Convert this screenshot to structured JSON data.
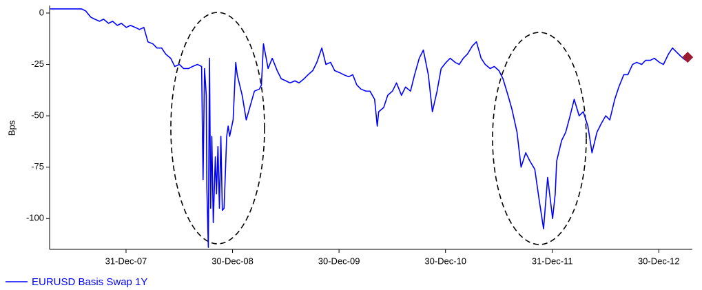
{
  "chart_data": {
    "type": "line",
    "y_label": "Bps",
    "x": [
      "2007-04-15",
      "2007-05-01",
      "2007-05-15",
      "2007-06-01",
      "2007-06-15",
      "2007-07-01",
      "2007-07-15",
      "2007-08-01",
      "2007-08-15",
      "2007-09-01",
      "2007-09-15",
      "2007-10-01",
      "2007-10-15",
      "2007-11-01",
      "2007-11-15",
      "2007-12-01",
      "2007-12-15",
      "2008-01-01",
      "2008-01-15",
      "2008-02-01",
      "2008-02-15",
      "2008-03-01",
      "2008-03-15",
      "2008-04-01",
      "2008-04-15",
      "2008-05-01",
      "2008-05-15",
      "2008-06-01",
      "2008-06-15",
      "2008-07-01",
      "2008-07-15",
      "2008-08-01",
      "2008-08-15",
      "2008-09-01",
      "2008-09-15",
      "2008-09-20",
      "2008-09-25",
      "2008-10-01",
      "2008-10-03",
      "2008-10-08",
      "2008-10-12",
      "2008-10-16",
      "2008-10-20",
      "2008-10-25",
      "2008-11-01",
      "2008-11-05",
      "2008-11-10",
      "2008-11-15",
      "2008-11-20",
      "2008-11-25",
      "2008-12-01",
      "2008-12-10",
      "2008-12-15",
      "2008-12-20",
      "2009-01-01",
      "2009-01-10",
      "2009-01-15",
      "2009-02-01",
      "2009-02-15",
      "2009-03-01",
      "2009-03-15",
      "2009-04-01",
      "2009-04-08",
      "2009-04-15",
      "2009-05-01",
      "2009-05-15",
      "2009-06-01",
      "2009-06-15",
      "2009-07-01",
      "2009-07-15",
      "2009-08-01",
      "2009-08-15",
      "2009-09-01",
      "2009-09-15",
      "2009-10-01",
      "2009-10-15",
      "2009-11-01",
      "2009-11-15",
      "2009-12-01",
      "2009-12-15",
      "2010-01-01",
      "2010-01-15",
      "2010-02-01",
      "2010-02-15",
      "2010-03-01",
      "2010-03-15",
      "2010-04-01",
      "2010-04-15",
      "2010-05-01",
      "2010-05-10",
      "2010-05-15",
      "2010-06-01",
      "2010-06-15",
      "2010-07-01",
      "2010-07-15",
      "2010-08-01",
      "2010-08-15",
      "2010-09-01",
      "2010-09-15",
      "2010-10-01",
      "2010-10-15",
      "2010-11-01",
      "2010-11-15",
      "2010-12-01",
      "2010-12-15",
      "2011-01-01",
      "2011-01-15",
      "2011-02-01",
      "2011-02-15",
      "2011-03-01",
      "2011-03-15",
      "2011-04-01",
      "2011-04-15",
      "2011-05-01",
      "2011-05-15",
      "2011-06-01",
      "2011-06-15",
      "2011-07-01",
      "2011-07-15",
      "2011-08-01",
      "2011-08-15",
      "2011-09-01",
      "2011-09-15",
      "2011-10-01",
      "2011-10-15",
      "2011-11-01",
      "2011-11-15",
      "2011-12-01",
      "2011-12-15",
      "2012-01-01",
      "2012-01-10",
      "2012-01-15",
      "2012-02-01",
      "2012-02-15",
      "2012-03-01",
      "2012-03-15",
      "2012-04-01",
      "2012-04-15",
      "2012-05-01",
      "2012-05-15",
      "2012-06-01",
      "2012-06-15",
      "2012-07-01",
      "2012-07-15",
      "2012-08-01",
      "2012-08-15",
      "2012-09-01",
      "2012-09-15",
      "2012-10-01",
      "2012-10-15",
      "2012-11-01",
      "2012-11-15",
      "2012-12-01",
      "2012-12-15",
      "2013-01-01",
      "2013-01-15",
      "2013-02-01",
      "2013-02-15",
      "2013-03-01",
      "2013-03-15",
      "2013-04-01",
      "2013-04-08"
    ],
    "series": [
      {
        "name": "EURUSD Basis Swap 1Y",
        "color": "#0000ff",
        "values": [
          2,
          2,
          2,
          2,
          2,
          2,
          2,
          2,
          1,
          -2,
          -3,
          -4,
          -3,
          -5,
          -4,
          -6,
          -5,
          -7,
          -6,
          -7,
          -8,
          -7,
          -14,
          -15,
          -17,
          -17,
          -20,
          -22,
          -26,
          -25,
          -27,
          -27,
          -26,
          -25,
          -26,
          -81,
          -27,
          -40,
          -85,
          -114,
          -22,
          -95,
          -60,
          -102,
          -70,
          -88,
          -65,
          -95,
          -60,
          -96,
          -95,
          -60,
          -55,
          -60,
          -52,
          -24,
          -30,
          -40,
          -52,
          -45,
          -38,
          -37,
          -35,
          -15,
          -27,
          -22,
          -28,
          -32,
          -33,
          -34,
          -33,
          -34,
          -32,
          -30,
          -28,
          -24,
          -17,
          -25,
          -24,
          -28,
          -29,
          -30,
          -31,
          -30,
          -35,
          -37,
          -38,
          -38,
          -42,
          -55,
          -48,
          -46,
          -40,
          -38,
          -34,
          -40,
          -36,
          -38,
          -30,
          -22,
          -18,
          -30,
          -48,
          -38,
          -27,
          -24,
          -22,
          -24,
          -25,
          -22,
          -20,
          -16,
          -14,
          -22,
          -25,
          -27,
          -26,
          -28,
          -32,
          -40,
          -47,
          -58,
          -75,
          -68,
          -72,
          -76,
          -90,
          -105,
          -80,
          -100,
          -88,
          -72,
          -62,
          -58,
          -50,
          -42,
          -50,
          -48,
          -55,
          -68,
          -58,
          -54,
          -50,
          -52,
          -42,
          -36,
          -30,
          -30,
          -25,
          -24,
          -25,
          -23,
          -23,
          -22,
          -24,
          -25,
          -20,
          -17,
          -19,
          -21,
          -23,
          -21.5
        ]
      }
    ],
    "end_marker_color": "#9b1b30",
    "xlim": [
      "2007-04-13",
      "2013-04-24"
    ],
    "xticks": [
      {
        "value": "2007-12-31",
        "label": "31-Dec-07"
      },
      {
        "value": "2008-12-30",
        "label": "30-Dec-08"
      },
      {
        "value": "2009-12-30",
        "label": "30-Dec-09"
      },
      {
        "value": "2010-12-30",
        "label": "30-Dec-10"
      },
      {
        "value": "2011-12-31",
        "label": "31-Dec-11"
      },
      {
        "value": "2012-12-30",
        "label": "30-Dec-12"
      }
    ],
    "ylim": [
      -115,
      3
    ],
    "yticks": [
      0,
      -25,
      -50,
      -75,
      -100
    ],
    "grid": false
  }
}
